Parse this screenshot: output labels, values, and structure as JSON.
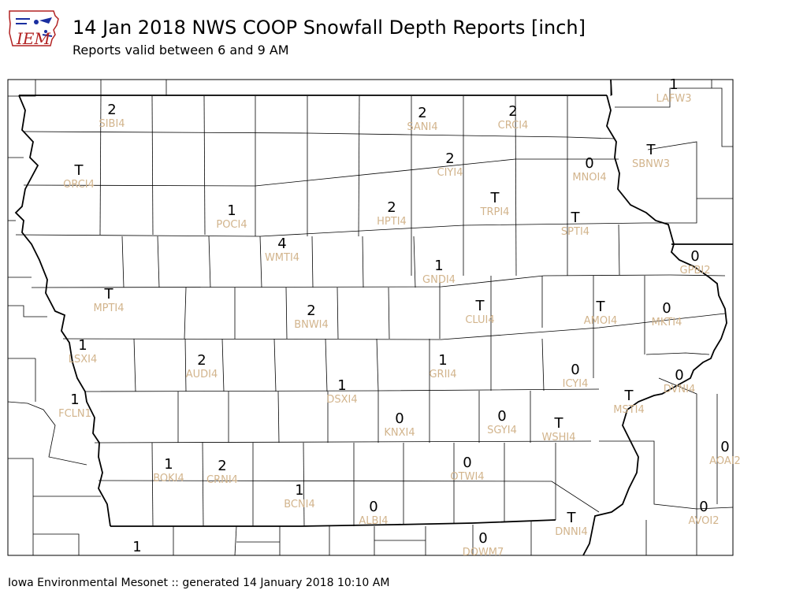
{
  "header": {
    "logo_text": "IEM",
    "title": "14 Jan 2018 NWS COOP Snowfall Depth Reports [inch]",
    "subtitle": "Reports valid between 6 and 9 AM"
  },
  "footer": {
    "text": "Iowa Environmental Mesonet :: generated 14 January 2018 10:10 AM"
  },
  "colors": {
    "value_text": "#000000",
    "station_label": "#d2b48c",
    "county_line": "#000000",
    "state_border": "#000000"
  },
  "stations": [
    {
      "id": "SIBI4",
      "value": "2"
    },
    {
      "id": "SANI4",
      "value": "2"
    },
    {
      "id": "CRCI4",
      "value": "2"
    },
    {
      "id": "LAFW3",
      "value": "1"
    },
    {
      "id": "ORCI4",
      "value": "T"
    },
    {
      "id": "CIYI4",
      "value": "2"
    },
    {
      "id": "MNOI4",
      "value": "0"
    },
    {
      "id": "SBNW3",
      "value": "T"
    },
    {
      "id": "POCI4",
      "value": "1"
    },
    {
      "id": "HPTI4",
      "value": "2"
    },
    {
      "id": "TRPI4",
      "value": "T"
    },
    {
      "id": "SPTI4",
      "value": "T"
    },
    {
      "id": "WMTI4",
      "value": "4"
    },
    {
      "id": "GNDI4",
      "value": "1"
    },
    {
      "id": "GPBI2",
      "value": "0"
    },
    {
      "id": "MPTI4",
      "value": "T"
    },
    {
      "id": "BNWI4",
      "value": "2"
    },
    {
      "id": "CLUI4",
      "value": "T"
    },
    {
      "id": "AMOI4",
      "value": "T"
    },
    {
      "id": "MKTI4",
      "value": "0"
    },
    {
      "id": "LSXI4",
      "value": "1"
    },
    {
      "id": "AUDI4",
      "value": "2"
    },
    {
      "id": "GRII4",
      "value": "1"
    },
    {
      "id": "ICYI4",
      "value": "0"
    },
    {
      "id": "DVNI4",
      "value": "0"
    },
    {
      "id": "FCLN1",
      "value": "1"
    },
    {
      "id": "DSXI4",
      "value": "1"
    },
    {
      "id": "MSTI4",
      "value": "T"
    },
    {
      "id": "KNXI4",
      "value": "0"
    },
    {
      "id": "SGYI4",
      "value": "0"
    },
    {
      "id": "WSHI4",
      "value": "T"
    },
    {
      "id": "AOAI2",
      "value": "0"
    },
    {
      "id": "BOKI4",
      "value": "1"
    },
    {
      "id": "CRNI4",
      "value": "2"
    },
    {
      "id": "OTWI4",
      "value": "0"
    },
    {
      "id": "BCNI4",
      "value": "1"
    },
    {
      "id": "ALBI4",
      "value": "0"
    },
    {
      "id": "AVOI2",
      "value": "0"
    },
    {
      "id": "DNNI4",
      "value": "T"
    },
    {
      "id": "DOWM7",
      "value": "0"
    },
    {
      "id": "",
      "value": "1"
    }
  ]
}
